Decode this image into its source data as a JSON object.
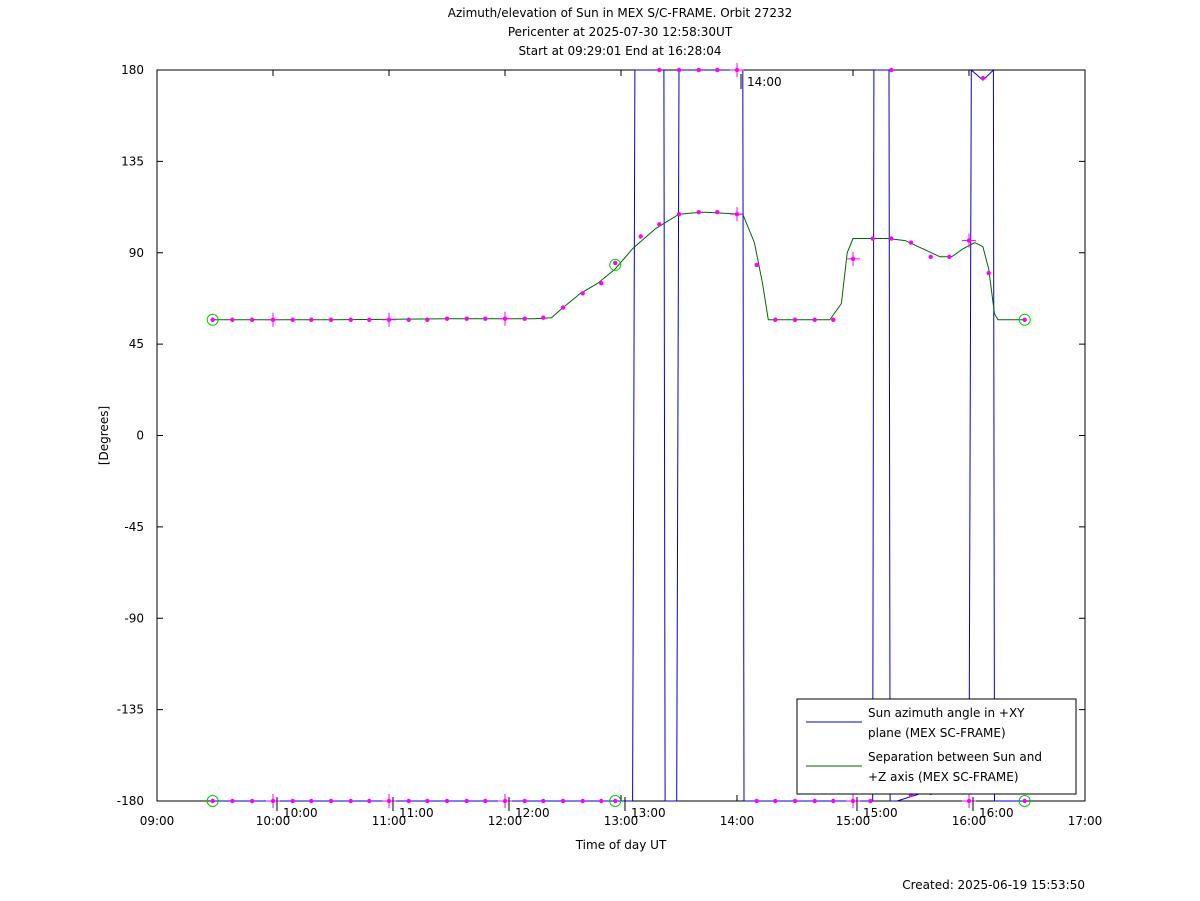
{
  "chart_data": {
    "type": "line",
    "title_lines": [
      "Azimuth/elevation of Sun in MEX S/C-FRAME.  Orbit 27232",
      "Pericenter at 2025-07-30 12:58:30UT",
      "Start at 09:29:01 End at 16:28:04"
    ],
    "xlabel": "Time of day UT",
    "ylabel": "[Degrees]",
    "xlim": [
      9.0,
      17.0
    ],
    "ylim": [
      -180,
      180
    ],
    "x_ticks": [
      {
        "v": 9,
        "label": "09:00"
      },
      {
        "v": 10,
        "label": "10:00"
      },
      {
        "v": 11,
        "label": "11:00"
      },
      {
        "v": 12,
        "label": "12:00"
      },
      {
        "v": 13,
        "label": "13:00"
      },
      {
        "v": 14,
        "label": "14:00"
      },
      {
        "v": 15,
        "label": "15:00"
      },
      {
        "v": 16,
        "label": "16:00"
      },
      {
        "v": 17,
        "label": "17:00"
      }
    ],
    "y_ticks": [
      {
        "v": 180,
        "label": "180"
      },
      {
        "v": 135,
        "label": "135"
      },
      {
        "v": 90,
        "label": "90"
      },
      {
        "v": 45,
        "label": "45"
      },
      {
        "v": 0,
        "label": "0"
      },
      {
        "v": -45,
        "label": "-45"
      },
      {
        "v": -90,
        "label": "-90"
      },
      {
        "v": -135,
        "label": "-135"
      },
      {
        "v": -180,
        "label": "-180"
      }
    ],
    "orbit_time_labels": [
      {
        "x": 10.0,
        "y": -180,
        "label": "10:00"
      },
      {
        "x": 11.0,
        "y": -180,
        "label": "11:00"
      },
      {
        "x": 12.0,
        "y": -180,
        "label": "12:00"
      },
      {
        "x": 13.0,
        "y": -180,
        "label": "13:00"
      },
      {
        "x": 14.0,
        "y": 180,
        "label": "14:00"
      },
      {
        "x": 15.0,
        "y": -180,
        "label": "15:00"
      },
      {
        "x": 16.0,
        "y": -180,
        "label": "16:00"
      }
    ],
    "legend_position": "bottom-right",
    "series": [
      {
        "name": "Sun azimuth angle in +XY plane (MEX SC-FRAME)",
        "legend_lines": [
          "Sun azimuth angle in +XY",
          "plane (MEX SC-FRAME)"
        ],
        "color": "#0000cc",
        "points": [
          [
            9.48,
            -180
          ],
          [
            12.95,
            -180
          ],
          [
            13.1,
            -180
          ],
          [
            13.12,
            180
          ],
          [
            13.37,
            180
          ],
          [
            13.38,
            -180
          ],
          [
            13.48,
            -180
          ],
          [
            13.5,
            180
          ],
          [
            14.05,
            180
          ],
          [
            14.06,
            -180
          ],
          [
            15.17,
            -180
          ],
          [
            15.18,
            180
          ],
          [
            15.31,
            180
          ],
          [
            15.32,
            -180
          ],
          [
            15.38,
            -180
          ],
          [
            15.6,
            -176
          ],
          [
            16.0,
            -173
          ],
          [
            16.02,
            180
          ],
          [
            16.12,
            175
          ],
          [
            16.21,
            180
          ],
          [
            16.22,
            -180
          ],
          [
            16.48,
            -180
          ]
        ],
        "markers": [
          [
            9.48,
            -180
          ],
          [
            9.65,
            -180
          ],
          [
            9.82,
            -180
          ],
          [
            10.0,
            -180
          ],
          [
            10.17,
            -180
          ],
          [
            10.33,
            -180
          ],
          [
            10.5,
            -180
          ],
          [
            10.67,
            -180
          ],
          [
            10.83,
            -180
          ],
          [
            11.0,
            -180
          ],
          [
            11.17,
            -180
          ],
          [
            11.33,
            -180
          ],
          [
            11.5,
            -180
          ],
          [
            11.67,
            -180
          ],
          [
            11.83,
            -180
          ],
          [
            12.0,
            -180
          ],
          [
            12.17,
            -180
          ],
          [
            12.33,
            -180
          ],
          [
            12.5,
            -180
          ],
          [
            12.67,
            -180
          ],
          [
            12.83,
            -180
          ],
          [
            12.95,
            -180
          ],
          [
            13.33,
            180
          ],
          [
            13.5,
            180
          ],
          [
            13.67,
            180
          ],
          [
            13.83,
            180
          ],
          [
            14.0,
            180
          ],
          [
            14.17,
            -180
          ],
          [
            14.33,
            -180
          ],
          [
            14.5,
            -180
          ],
          [
            14.67,
            -180
          ],
          [
            14.83,
            -180
          ],
          [
            15.0,
            -180
          ],
          [
            15.15,
            -180
          ],
          [
            15.33,
            180
          ],
          [
            15.5,
            -177
          ],
          [
            15.67,
            -176
          ],
          [
            15.83,
            -174
          ],
          [
            16.0,
            -180
          ],
          [
            16.12,
            176
          ],
          [
            16.48,
            -180
          ]
        ]
      },
      {
        "name": "Separation between Sun and +Z axis (MEX SC-FRAME)",
        "legend_lines": [
          "Separation between Sun and",
          "+Z axis (MEX SC-FRAME)"
        ],
        "color": "#006600",
        "points": [
          [
            9.48,
            57
          ],
          [
            10.5,
            57
          ],
          [
            11.5,
            57.5
          ],
          [
            12.25,
            57.5
          ],
          [
            12.4,
            58
          ],
          [
            12.5,
            63
          ],
          [
            12.65,
            70
          ],
          [
            12.8,
            75
          ],
          [
            12.95,
            82
          ],
          [
            13.1,
            92
          ],
          [
            13.3,
            102
          ],
          [
            13.5,
            109
          ],
          [
            13.7,
            110
          ],
          [
            14.05,
            109
          ],
          [
            14.15,
            95
          ],
          [
            14.22,
            75
          ],
          [
            14.27,
            57
          ],
          [
            14.8,
            57
          ],
          [
            14.9,
            65
          ],
          [
            14.95,
            90
          ],
          [
            15.0,
            97
          ],
          [
            15.3,
            97
          ],
          [
            15.45,
            96
          ],
          [
            15.6,
            92
          ],
          [
            15.75,
            88
          ],
          [
            15.85,
            88
          ],
          [
            15.95,
            92
          ],
          [
            16.05,
            95
          ],
          [
            16.12,
            93
          ],
          [
            16.17,
            82
          ],
          [
            16.22,
            60
          ],
          [
            16.25,
            57
          ],
          [
            16.48,
            57
          ]
        ],
        "markers": [
          [
            9.48,
            57
          ],
          [
            9.65,
            57
          ],
          [
            9.82,
            57
          ],
          [
            10.0,
            57
          ],
          [
            10.17,
            57
          ],
          [
            10.33,
            57
          ],
          [
            10.5,
            57
          ],
          [
            10.67,
            57
          ],
          [
            10.83,
            57
          ],
          [
            11.0,
            57
          ],
          [
            11.17,
            57
          ],
          [
            11.33,
            57
          ],
          [
            11.5,
            57.5
          ],
          [
            11.67,
            57.5
          ],
          [
            11.83,
            57.5
          ],
          [
            12.0,
            57.5
          ],
          [
            12.17,
            57.5
          ],
          [
            12.33,
            58
          ],
          [
            12.5,
            63
          ],
          [
            12.67,
            70
          ],
          [
            12.83,
            75
          ],
          [
            12.95,
            85
          ],
          [
            13.17,
            98
          ],
          [
            13.33,
            104
          ],
          [
            13.5,
            109
          ],
          [
            13.67,
            110
          ],
          [
            13.83,
            110
          ],
          [
            14.0,
            109
          ],
          [
            14.17,
            84
          ],
          [
            14.33,
            57
          ],
          [
            14.5,
            57
          ],
          [
            14.67,
            57
          ],
          [
            14.83,
            57
          ],
          [
            15.0,
            87
          ],
          [
            15.17,
            97
          ],
          [
            15.33,
            97
          ],
          [
            15.5,
            95
          ],
          [
            15.67,
            88
          ],
          [
            15.83,
            88
          ],
          [
            16.0,
            96
          ],
          [
            16.17,
            80
          ],
          [
            16.48,
            57
          ]
        ]
      }
    ],
    "circle_markers": [
      [
        9.48,
        57
      ],
      [
        12.95,
        84
      ],
      [
        16.48,
        57
      ],
      [
        9.48,
        -180
      ],
      [
        12.95,
        -180
      ],
      [
        16.48,
        -180
      ]
    ],
    "footer": "Created: 2025-06-19 15:53:50"
  }
}
